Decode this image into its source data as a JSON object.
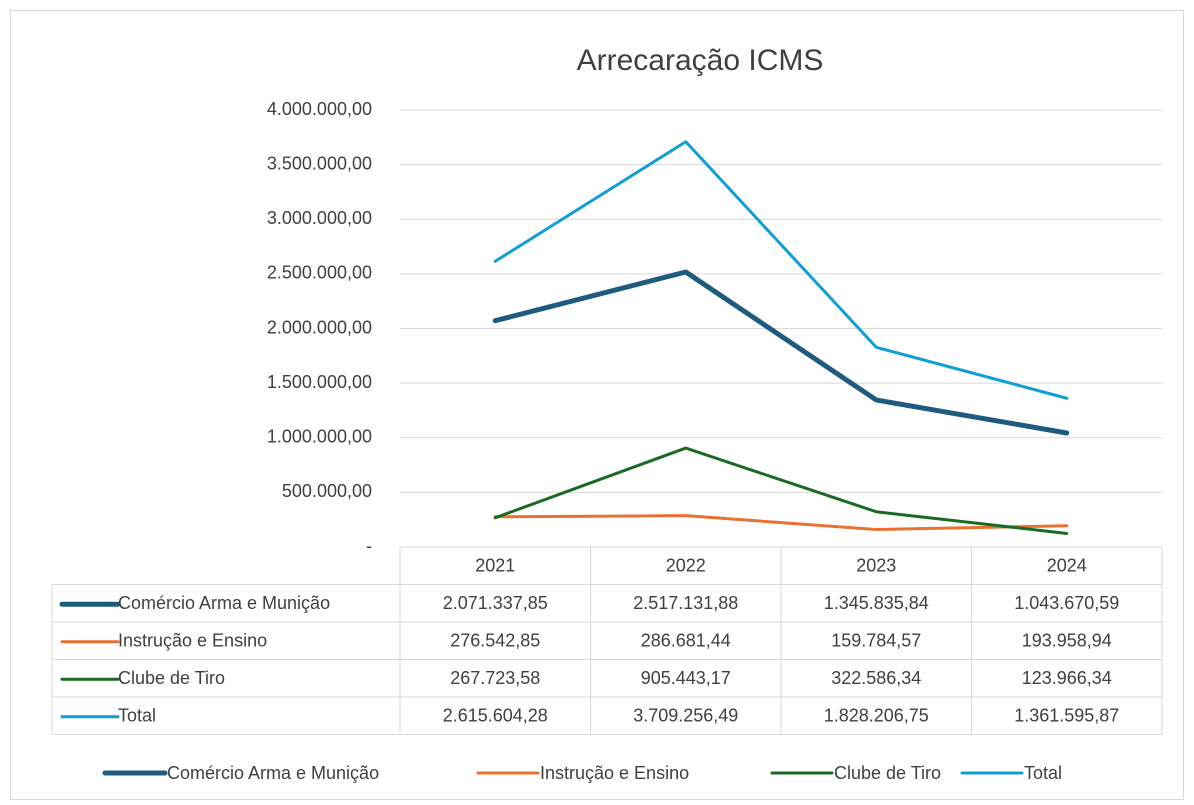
{
  "chart_data": {
    "type": "line",
    "title": "Arrecaração ICMS",
    "categories": [
      "2021",
      "2022",
      "2023",
      "2024"
    ],
    "ylim": [
      0,
      4000000
    ],
    "yticks": [
      {
        "value": 0,
        "label": "-"
      },
      {
        "value": 500000,
        "label": "500.000,00"
      },
      {
        "value": 1000000,
        "label": "1.000.000,00"
      },
      {
        "value": 1500000,
        "label": "1.500.000,00"
      },
      {
        "value": 2000000,
        "label": "2.000.000,00"
      },
      {
        "value": 2500000,
        "label": "2.500.000,00"
      },
      {
        "value": 3000000,
        "label": "3.000.000,00"
      },
      {
        "value": 3500000,
        "label": "3.500.000,00"
      },
      {
        "value": 4000000,
        "label": "4.000.000,00"
      }
    ],
    "grid": true,
    "legend": "bottom",
    "series": [
      {
        "name": "Comércio Arma e Munição",
        "color": "#1f5b7e",
        "values": [
          2071337.85,
          2517131.88,
          1345835.84,
          1043670.59
        ],
        "value_labels": [
          "2.071.337,85",
          "2.517.131,88",
          "1.345.835,84",
          "1.043.670,59"
        ]
      },
      {
        "name": "Instrução e Ensino",
        "color": "#e97132",
        "values": [
          276542.85,
          286681.44,
          159784.57,
          193958.94
        ],
        "value_labels": [
          "276.542,85",
          "286.681,44",
          "159.784,57",
          "193.958,94"
        ]
      },
      {
        "name": "Clube de Tiro",
        "color": "#196b24",
        "values": [
          267723.58,
          905443.17,
          322586.34,
          123966.34
        ],
        "value_labels": [
          "267.723,58",
          "905.443,17",
          "322.586,34",
          "123.966,34"
        ]
      },
      {
        "name": "Total",
        "color": "#0f9ed5",
        "values": [
          2615604.28,
          3709256.49,
          1828206.75,
          1361595.87
        ],
        "value_labels": [
          "2.615.604,28",
          "3.709.256,49",
          "1.828.206,75",
          "1.361.595,87"
        ]
      }
    ]
  }
}
